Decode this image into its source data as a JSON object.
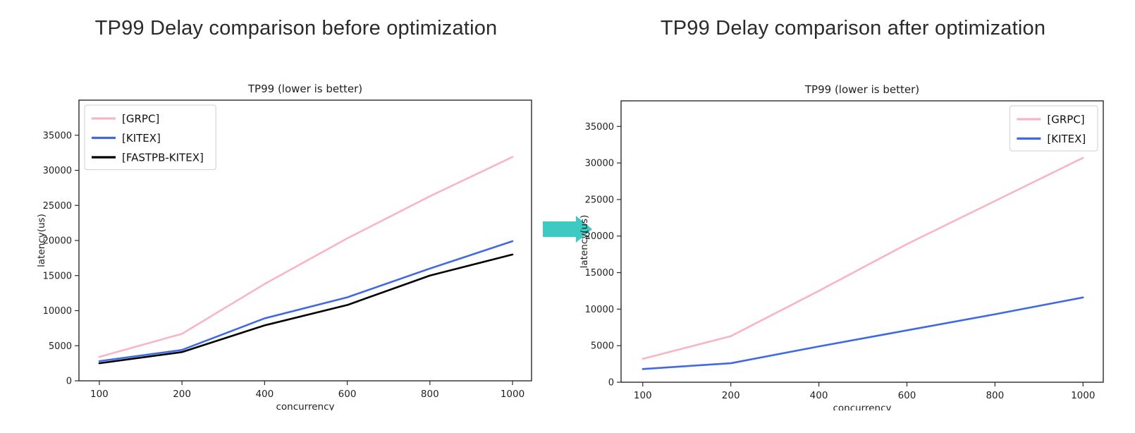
{
  "before": {
    "heading": "TP99 Delay comparison before optimization"
  },
  "after": {
    "heading": "TP99 Delay comparison after optimization"
  },
  "arrow": {
    "icon": "right-arrow-icon",
    "color": "#3ec9c2"
  },
  "chart_data": [
    {
      "type": "line",
      "title": "TP99 (lower is better)",
      "xlabel": "concurrency",
      "ylabel": "latency(us)",
      "categories": [
        100,
        200,
        400,
        600,
        800,
        1000
      ],
      "series": [
        {
          "name": "[GRPC]",
          "color": "#f8b5c3",
          "values": [
            3400,
            6700,
            13800,
            20300,
            26300,
            31900
          ]
        },
        {
          "name": "[KITEX]",
          "color": "#4169e1",
          "values": [
            2800,
            4400,
            8900,
            11900,
            16000,
            19900
          ]
        },
        {
          "name": "[FASTPB-KITEX]",
          "color": "#000000",
          "values": [
            2500,
            4100,
            7900,
            10800,
            15000,
            18000
          ]
        }
      ],
      "ylim": [
        0,
        40000
      ],
      "ytick_step": 5000,
      "ytick_max": 35000,
      "grid": false,
      "legend_position": "upper left"
    },
    {
      "type": "line",
      "title": "TP99 (lower is better)",
      "xlabel": "concurrency",
      "ylabel": "latency(us)",
      "categories": [
        100,
        200,
        400,
        600,
        800,
        1000
      ],
      "series": [
        {
          "name": "[GRPC]",
          "color": "#f8b5c3",
          "values": [
            3200,
            6300,
            12500,
            18900,
            24800,
            30700
          ]
        },
        {
          "name": "[KITEX]",
          "color": "#4169e1",
          "values": [
            1800,
            2600,
            4900,
            7100,
            9300,
            11600
          ]
        }
      ],
      "ylim": [
        0,
        38500
      ],
      "ytick_step": 5000,
      "ytick_max": 35000,
      "grid": false,
      "legend_position": "upper right"
    }
  ]
}
